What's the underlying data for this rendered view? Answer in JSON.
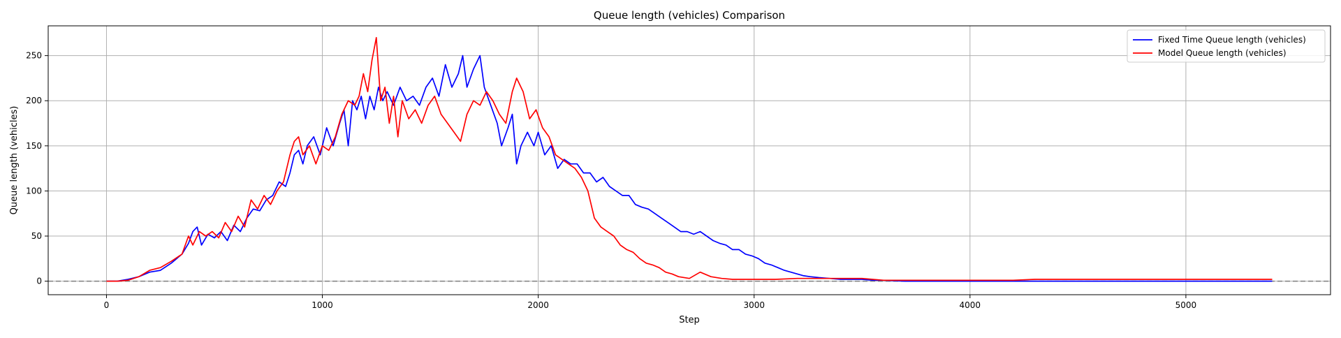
{
  "chart_data": {
    "type": "line",
    "title": "Queue length (vehicles) Comparison",
    "xlabel": "Step",
    "ylabel": "Queue length (vehicles)",
    "xlim": [
      -270,
      5670
    ],
    "ylim": [
      -15,
      283
    ],
    "xticks": [
      0,
      1000,
      2000,
      3000,
      4000,
      5000
    ],
    "yticks": [
      0,
      50,
      100,
      150,
      200,
      250
    ],
    "grid": true,
    "legend_position": "top-right",
    "reference_line": {
      "y": 0,
      "style": "dashed",
      "color": "#808080"
    },
    "series": [
      {
        "name": "Fixed Time Queue length (vehicles)",
        "color": "#0000ff",
        "points": [
          [
            0,
            0
          ],
          [
            50,
            0
          ],
          [
            100,
            2
          ],
          [
            150,
            5
          ],
          [
            200,
            10
          ],
          [
            250,
            12
          ],
          [
            300,
            20
          ],
          [
            350,
            30
          ],
          [
            380,
            42
          ],
          [
            400,
            55
          ],
          [
            420,
            60
          ],
          [
            440,
            40
          ],
          [
            470,
            52
          ],
          [
            500,
            48
          ],
          [
            530,
            55
          ],
          [
            560,
            45
          ],
          [
            590,
            62
          ],
          [
            620,
            55
          ],
          [
            650,
            70
          ],
          [
            680,
            80
          ],
          [
            710,
            78
          ],
          [
            740,
            90
          ],
          [
            770,
            95
          ],
          [
            800,
            110
          ],
          [
            830,
            105
          ],
          [
            850,
            120
          ],
          [
            870,
            140
          ],
          [
            890,
            145
          ],
          [
            910,
            130
          ],
          [
            930,
            150
          ],
          [
            960,
            160
          ],
          [
            990,
            140
          ],
          [
            1020,
            170
          ],
          [
            1050,
            150
          ],
          [
            1080,
            175
          ],
          [
            1100,
            190
          ],
          [
            1120,
            150
          ],
          [
            1140,
            200
          ],
          [
            1160,
            190
          ],
          [
            1180,
            205
          ],
          [
            1200,
            180
          ],
          [
            1220,
            205
          ],
          [
            1240,
            190
          ],
          [
            1260,
            215
          ],
          [
            1280,
            200
          ],
          [
            1300,
            210
          ],
          [
            1330,
            195
          ],
          [
            1360,
            215
          ],
          [
            1390,
            200
          ],
          [
            1420,
            205
          ],
          [
            1450,
            195
          ],
          [
            1480,
            215
          ],
          [
            1510,
            225
          ],
          [
            1540,
            205
          ],
          [
            1570,
            240
          ],
          [
            1600,
            215
          ],
          [
            1630,
            230
          ],
          [
            1650,
            250
          ],
          [
            1670,
            215
          ],
          [
            1700,
            235
          ],
          [
            1730,
            250
          ],
          [
            1750,
            215
          ],
          [
            1780,
            195
          ],
          [
            1810,
            175
          ],
          [
            1830,
            150
          ],
          [
            1860,
            170
          ],
          [
            1880,
            185
          ],
          [
            1900,
            130
          ],
          [
            1920,
            150
          ],
          [
            1950,
            165
          ],
          [
            1980,
            150
          ],
          [
            2000,
            165
          ],
          [
            2030,
            140
          ],
          [
            2060,
            150
          ],
          [
            2090,
            125
          ],
          [
            2120,
            135
          ],
          [
            2150,
            130
          ],
          [
            2180,
            130
          ],
          [
            2210,
            120
          ],
          [
            2240,
            120
          ],
          [
            2270,
            110
          ],
          [
            2300,
            115
          ],
          [
            2330,
            105
          ],
          [
            2360,
            100
          ],
          [
            2390,
            95
          ],
          [
            2420,
            95
          ],
          [
            2450,
            85
          ],
          [
            2480,
            82
          ],
          [
            2510,
            80
          ],
          [
            2540,
            75
          ],
          [
            2570,
            70
          ],
          [
            2600,
            65
          ],
          [
            2630,
            60
          ],
          [
            2660,
            55
          ],
          [
            2690,
            55
          ],
          [
            2720,
            52
          ],
          [
            2750,
            55
          ],
          [
            2780,
            50
          ],
          [
            2810,
            45
          ],
          [
            2840,
            42
          ],
          [
            2870,
            40
          ],
          [
            2900,
            35
          ],
          [
            2930,
            35
          ],
          [
            2960,
            30
          ],
          [
            2990,
            28
          ],
          [
            3020,
            25
          ],
          [
            3050,
            20
          ],
          [
            3080,
            18
          ],
          [
            3110,
            15
          ],
          [
            3140,
            12
          ],
          [
            3170,
            10
          ],
          [
            3200,
            8
          ],
          [
            3230,
            6
          ],
          [
            3260,
            5
          ],
          [
            3300,
            4
          ],
          [
            3350,
            3
          ],
          [
            3400,
            2
          ],
          [
            3450,
            2
          ],
          [
            3500,
            2
          ],
          [
            3550,
            1
          ],
          [
            3600,
            1
          ],
          [
            3700,
            0
          ],
          [
            3800,
            0
          ],
          [
            3900,
            0
          ],
          [
            4000,
            0
          ],
          [
            4500,
            0
          ],
          [
            5000,
            0
          ],
          [
            5400,
            0
          ]
        ]
      },
      {
        "name": "Model Queue length (vehicles)",
        "color": "#ff0000",
        "points": [
          [
            0,
            0
          ],
          [
            50,
            0
          ],
          [
            100,
            1
          ],
          [
            150,
            5
          ],
          [
            200,
            12
          ],
          [
            250,
            15
          ],
          [
            300,
            22
          ],
          [
            350,
            30
          ],
          [
            380,
            50
          ],
          [
            400,
            40
          ],
          [
            430,
            55
          ],
          [
            460,
            50
          ],
          [
            490,
            55
          ],
          [
            520,
            48
          ],
          [
            550,
            65
          ],
          [
            580,
            55
          ],
          [
            610,
            72
          ],
          [
            640,
            60
          ],
          [
            670,
            90
          ],
          [
            700,
            80
          ],
          [
            730,
            95
          ],
          [
            760,
            85
          ],
          [
            790,
            100
          ],
          [
            820,
            110
          ],
          [
            850,
            140
          ],
          [
            870,
            155
          ],
          [
            890,
            160
          ],
          [
            910,
            140
          ],
          [
            940,
            150
          ],
          [
            970,
            130
          ],
          [
            1000,
            150
          ],
          [
            1030,
            145
          ],
          [
            1060,
            160
          ],
          [
            1090,
            185
          ],
          [
            1120,
            200
          ],
          [
            1150,
            195
          ],
          [
            1170,
            205
          ],
          [
            1190,
            230
          ],
          [
            1210,
            210
          ],
          [
            1230,
            245
          ],
          [
            1250,
            270
          ],
          [
            1270,
            200
          ],
          [
            1290,
            215
          ],
          [
            1310,
            175
          ],
          [
            1330,
            205
          ],
          [
            1350,
            160
          ],
          [
            1370,
            200
          ],
          [
            1400,
            180
          ],
          [
            1430,
            190
          ],
          [
            1460,
            175
          ],
          [
            1490,
            195
          ],
          [
            1520,
            205
          ],
          [
            1550,
            185
          ],
          [
            1580,
            175
          ],
          [
            1610,
            165
          ],
          [
            1640,
            155
          ],
          [
            1670,
            185
          ],
          [
            1700,
            200
          ],
          [
            1730,
            195
          ],
          [
            1760,
            210
          ],
          [
            1790,
            200
          ],
          [
            1820,
            185
          ],
          [
            1850,
            175
          ],
          [
            1880,
            210
          ],
          [
            1900,
            225
          ],
          [
            1930,
            210
          ],
          [
            1960,
            180
          ],
          [
            1990,
            190
          ],
          [
            2020,
            170
          ],
          [
            2050,
            160
          ],
          [
            2080,
            140
          ],
          [
            2110,
            135
          ],
          [
            2140,
            130
          ],
          [
            2170,
            125
          ],
          [
            2200,
            115
          ],
          [
            2230,
            100
          ],
          [
            2260,
            70
          ],
          [
            2290,
            60
          ],
          [
            2320,
            55
          ],
          [
            2350,
            50
          ],
          [
            2380,
            40
          ],
          [
            2410,
            35
          ],
          [
            2440,
            32
          ],
          [
            2470,
            25
          ],
          [
            2500,
            20
          ],
          [
            2530,
            18
          ],
          [
            2560,
            15
          ],
          [
            2590,
            10
          ],
          [
            2620,
            8
          ],
          [
            2650,
            5
          ],
          [
            2700,
            3
          ],
          [
            2750,
            10
          ],
          [
            2800,
            5
          ],
          [
            2850,
            3
          ],
          [
            2900,
            2
          ],
          [
            3000,
            2
          ],
          [
            3100,
            2
          ],
          [
            3200,
            3
          ],
          [
            3300,
            3
          ],
          [
            3400,
            3
          ],
          [
            3500,
            3
          ],
          [
            3600,
            1
          ],
          [
            3700,
            1
          ],
          [
            3800,
            1
          ],
          [
            3900,
            1
          ],
          [
            4000,
            1
          ],
          [
            4200,
            1
          ],
          [
            4300,
            2
          ],
          [
            4500,
            2
          ],
          [
            5000,
            2
          ],
          [
            5400,
            2
          ]
        ]
      }
    ]
  }
}
